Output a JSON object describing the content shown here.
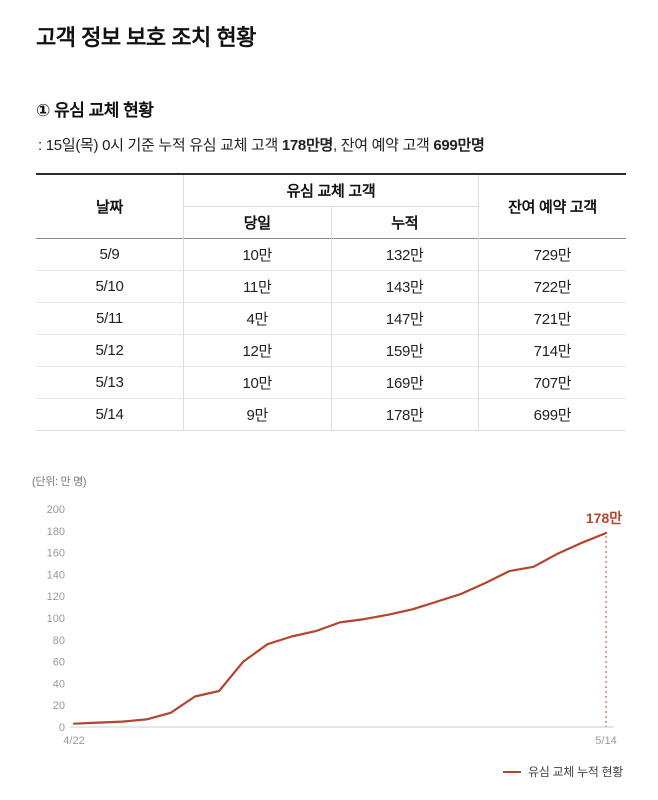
{
  "title": "고객 정보 보호 조치 현황",
  "section": {
    "title": "① 유심 교체 현황",
    "subtitle": {
      "prefix": ": 15일(목) 0시 기준 누적 유심 교체 고객 ",
      "bold1": "178만명",
      "mid": ", 잔여 예약 고객 ",
      "bold2": "699만명"
    }
  },
  "table": {
    "headers": {
      "date": "날짜",
      "group": "유심 교체 고객",
      "daily": "당일",
      "cumulative": "누적",
      "remaining": "잔여 예약 고객"
    },
    "rows": [
      [
        "5/9",
        "10만",
        "132만",
        "729만"
      ],
      [
        "5/10",
        "11만",
        "143만",
        "722만"
      ],
      [
        "5/11",
        "4만",
        "147만",
        "721만"
      ],
      [
        "5/12",
        "12만",
        "159만",
        "714만"
      ],
      [
        "5/13",
        "10만",
        "169만",
        "707만"
      ],
      [
        "5/14",
        "9만",
        "178만",
        "699만"
      ]
    ]
  },
  "chart_data": {
    "type": "line",
    "title": "유심 교체 누적 현황",
    "unit_label": "(단위: 만 명)",
    "x": [
      "4/22",
      "4/23",
      "4/24",
      "4/25",
      "4/26",
      "4/27",
      "4/28",
      "4/29",
      "4/30",
      "5/1",
      "5/2",
      "5/3",
      "5/4",
      "5/5",
      "5/6",
      "5/7",
      "5/8",
      "5/9",
      "5/10",
      "5/11",
      "5/12",
      "5/13",
      "5/14"
    ],
    "values": [
      3,
      4,
      5,
      7,
      13,
      28,
      33,
      60,
      76,
      83,
      88,
      96,
      99,
      103,
      108,
      115,
      122,
      132,
      143,
      147,
      159,
      169,
      178
    ],
    "ylim": [
      0,
      200
    ],
    "ytick_step": 20,
    "x_axis_labels": [
      "4/22",
      "5/14"
    ],
    "annotation": {
      "text": "178만",
      "x": "5/14",
      "y": 178
    },
    "line_color": "#b5442e",
    "axis_color": "#cccccc",
    "tick_label_color": "#999999",
    "grid": false,
    "legend": [
      {
        "label": "유심 교체 누적 현황",
        "color": "#b5442e"
      }
    ],
    "legend_position": "bottom-right"
  }
}
